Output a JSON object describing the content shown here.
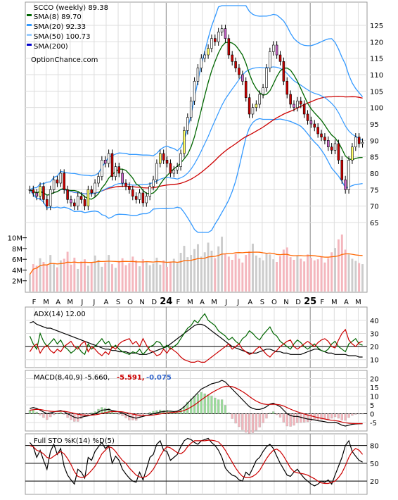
{
  "chart_data": [
    {
      "type": "candlestick",
      "panel": "price",
      "title": "SCCO (weekly) 89.38",
      "watermark": "OptionChance.com",
      "legend": [
        {
          "name": "SMA(8) 89.70",
          "color": "#006600"
        },
        {
          "name": "SMA(20) 92.33",
          "color": "#3399ff"
        },
        {
          "name": "SMA(50) 100.73",
          "color": "#99ccff"
        },
        {
          "name": "SMA(200)",
          "color": "#0000cc"
        }
      ],
      "y_ticks": [
        65,
        70,
        75,
        80,
        85,
        90,
        95,
        100,
        105,
        110,
        115,
        120,
        125
      ],
      "ylim": [
        62,
        131
      ],
      "x_ticks": [
        "F",
        "M",
        "A",
        "M",
        "J",
        "J",
        "A",
        "S",
        "O",
        "N",
        "D",
        "24",
        "F",
        "M",
        "A",
        "M",
        "J",
        "J",
        "A",
        "S",
        "O",
        "N",
        "D",
        "25",
        "F",
        "M",
        "A",
        "M"
      ],
      "close": [
        75,
        74,
        73,
        76,
        72,
        70,
        75,
        78,
        77,
        80,
        75,
        72,
        71,
        70,
        73,
        72,
        70,
        75,
        74,
        77,
        79,
        84,
        83,
        86,
        79,
        82,
        80,
        77,
        76,
        75,
        73,
        72,
        74,
        71,
        73,
        76,
        78,
        83,
        86,
        84,
        83,
        80,
        81,
        82,
        86,
        93,
        97,
        102,
        108,
        112,
        115,
        116,
        118,
        121,
        120,
        123,
        124,
        121,
        116,
        114,
        112,
        110,
        108,
        103,
        98,
        100,
        101,
        104,
        106,
        112,
        117,
        119,
        116,
        114,
        108,
        104,
        101,
        100,
        102,
        101,
        98,
        96,
        95,
        94,
        92,
        91,
        90,
        88,
        87,
        89,
        84,
        78,
        75,
        84,
        88,
        91,
        89,
        89.38
      ],
      "volume_ticks": [
        "10M",
        "8M",
        "6M",
        "4M",
        "2M"
      ],
      "volume_range": [
        0,
        11
      ],
      "volume": [
        3.2,
        5.1,
        4.8,
        6.2,
        5.5,
        4.9,
        6.8,
        5.2,
        4.5,
        5.8,
        6.1,
        7.4,
        5.0,
        6.3,
        4.2,
        5.6,
        6.0,
        4.8,
        5.3,
        6.7,
        5.9,
        4.6,
        5.4,
        6.8,
        5.1,
        4.4,
        5.7,
        6.2,
        4.9,
        5.3,
        6.5,
        5.8,
        4.7,
        6.0,
        5.5,
        4.9,
        5.2,
        6.3,
        5.0,
        5.8,
        4.6,
        5.4,
        6.1,
        5.3,
        7.2,
        8.5,
        6.4,
        6.8,
        7.9,
        8.8,
        6.5,
        7.3,
        9.1,
        7.6,
        6.2,
        8.4,
        10.2,
        7.1,
        6.5,
        5.9,
        7.0,
        6.1,
        5.4,
        6.8,
        7.5,
        8.9,
        6.7,
        6.3,
        5.8,
        7.2,
        6.9,
        6.0,
        5.5,
        6.6,
        7.8,
        8.2,
        6.4,
        5.9,
        6.7,
        6.1,
        5.6,
        6.9,
        6.3,
        5.8,
        6.0,
        6.6,
        5.4,
        6.2,
        7.3,
        8.1,
        9.7,
        10.6,
        7.8,
        6.9,
        6.1,
        5.7,
        5.3,
        5.1
      ],
      "volume_avg_color": "#ff6600"
    },
    {
      "type": "line",
      "panel": "adx",
      "title": "ADX(14) 12.00",
      "y_ticks": [
        10,
        20,
        30,
        40
      ],
      "ylim": [
        5,
        48
      ],
      "series": [
        {
          "name": "ADX",
          "color": "#000000",
          "values": [
            38,
            39,
            37,
            36,
            35,
            34,
            34,
            33,
            32,
            31,
            30,
            29,
            28,
            27,
            26,
            25,
            24,
            23,
            22,
            21,
            20,
            19,
            18,
            18,
            17,
            17,
            16,
            16,
            16,
            15,
            15,
            15,
            14,
            14,
            14,
            15,
            16,
            17,
            18,
            19,
            20,
            22,
            24,
            26,
            28,
            30,
            32,
            34,
            36,
            37,
            37,
            36,
            34,
            32,
            30,
            28,
            26,
            24,
            22,
            20,
            19,
            18,
            17,
            16,
            15,
            15,
            15,
            16,
            17,
            18,
            18,
            17,
            16,
            16,
            15,
            15,
            14,
            14,
            14,
            14,
            15,
            16,
            17,
            18,
            18,
            17,
            16,
            15,
            15,
            14,
            14,
            14,
            14,
            13,
            13,
            13,
            12,
            12
          ]
        },
        {
          "name": "+DI",
          "color": "#006600",
          "values": [
            28,
            22,
            18,
            30,
            24,
            20,
            23,
            26,
            22,
            25,
            20,
            18,
            15,
            17,
            20,
            16,
            14,
            22,
            18,
            20,
            23,
            26,
            22,
            24,
            19,
            21,
            18,
            16,
            15,
            14,
            16,
            15,
            18,
            14,
            17,
            20,
            21,
            24,
            23,
            19,
            21,
            18,
            20,
            22,
            26,
            30,
            34,
            36,
            40,
            38,
            42,
            45,
            40,
            38,
            36,
            32,
            30,
            28,
            25,
            27,
            24,
            22,
            26,
            28,
            32,
            30,
            27,
            25,
            29,
            32,
            35,
            30,
            28,
            24,
            22,
            20,
            18,
            22,
            25,
            23,
            20,
            18,
            20,
            22,
            19,
            17,
            16,
            18,
            22,
            24,
            20,
            18,
            16,
            22,
            24,
            26,
            22,
            21
          ]
        },
        {
          "name": "-DI",
          "color": "#cc0000",
          "values": [
            16,
            20,
            22,
            15,
            19,
            21,
            17,
            15,
            18,
            16,
            20,
            22,
            24,
            20,
            18,
            22,
            24,
            16,
            20,
            18,
            15,
            13,
            16,
            14,
            20,
            18,
            22,
            24,
            25,
            26,
            22,
            24,
            20,
            26,
            21,
            17,
            16,
            13,
            14,
            18,
            15,
            19,
            17,
            15,
            12,
            10,
            9,
            8,
            8,
            9,
            8,
            8,
            10,
            12,
            14,
            16,
            18,
            20,
            22,
            18,
            20,
            22,
            18,
            16,
            14,
            15,
            18,
            20,
            17,
            14,
            12,
            15,
            17,
            20,
            22,
            24,
            25,
            20,
            18,
            20,
            22,
            24,
            22,
            20,
            23,
            25,
            26,
            24,
            20,
            19,
            25,
            30,
            33,
            25,
            22,
            20,
            23,
            24
          ]
        }
      ]
    },
    {
      "type": "line",
      "panel": "macd",
      "title": "MACD(8,40,9) -5.660,",
      "signal_label": "-5.591,",
      "hist_label": "-0.075",
      "signal_color": "#cc0000",
      "hist_color": "#3366cc",
      "y_ticks": [
        -5,
        0,
        5,
        10,
        15,
        20
      ],
      "ylim": [
        -9,
        23
      ],
      "series": [
        {
          "name": "MACD",
          "color": "#000000",
          "values": [
            3,
            3.5,
            3,
            2,
            1,
            0,
            0.5,
            1,
            1.5,
            1.8,
            1.2,
            0,
            -1,
            -2,
            -2.5,
            -2,
            -1.5,
            -1.2,
            -0.5,
            0,
            1,
            2,
            2.2,
            2.5,
            1.8,
            1.5,
            1,
            0.5,
            -0.5,
            -1.5,
            -2,
            -2.5,
            -2,
            -1.5,
            -1,
            -0.5,
            0,
            0.5,
            1,
            1.2,
            1.5,
            1.5,
            1.2,
            1.5,
            2.5,
            4,
            6,
            8,
            10,
            12,
            14,
            15,
            16,
            17,
            17.5,
            18,
            19,
            18,
            16,
            14,
            12,
            10,
            8,
            6,
            4,
            3,
            2.5,
            2.5,
            3,
            4,
            5.5,
            6,
            5,
            4,
            2,
            0,
            -1,
            -1.5,
            -1.5,
            -2,
            -2.5,
            -3,
            -3.2,
            -3.5,
            -4,
            -4.2,
            -4.5,
            -5,
            -5,
            -4.8,
            -5.5,
            -6.5,
            -7,
            -6.5,
            -6,
            -5.8,
            -5.7,
            -5.66
          ]
        },
        {
          "name": "Signal",
          "color": "#cc0000",
          "values": [
            2,
            2.3,
            2.5,
            2.4,
            2.1,
            1.7,
            1.4,
            1.3,
            1.3,
            1.4,
            1.4,
            1.1,
            0.7,
            0.2,
            -0.3,
            -0.6,
            -0.8,
            -0.9,
            -0.8,
            -0.6,
            -0.3,
            0.2,
            0.6,
            1,
            1.2,
            1.2,
            1.2,
            1.1,
            0.7,
            0.3,
            -0.2,
            -0.6,
            -0.9,
            -1,
            -1,
            -0.9,
            -0.7,
            -0.4,
            -0.1,
            0.2,
            0.5,
            0.7,
            0.8,
            1,
            1.3,
            1.9,
            2.7,
            3.8,
            5,
            6.4,
            7.9,
            9.3,
            10.6,
            11.9,
            13,
            14,
            15,
            15.6,
            15.7,
            15.4,
            14.7,
            13.7,
            12.6,
            11.3,
            9.8,
            8.4,
            7.2,
            6.3,
            5.6,
            5.3,
            5.3,
            5.4,
            5.3,
            5,
            4.4,
            3.5,
            2.6,
            1.8,
            1.1,
            0.5,
            -0.1,
            -0.7,
            -1.2,
            -1.7,
            -2.2,
            -2.6,
            -3,
            -3.4,
            -3.7,
            -3.9,
            -4.2,
            -4.7,
            -5.1,
            -5.4,
            -5.5,
            -5.6,
            -5.6,
            -5.591
          ]
        }
      ]
    },
    {
      "type": "line",
      "panel": "sto",
      "title": "Full STO %K(14) %D(5)",
      "y_ticks": [
        20,
        50,
        80
      ],
      "ylim": [
        0,
        95
      ],
      "series": [
        {
          "name": "%K",
          "color": "#000000",
          "values": [
            85,
            78,
            60,
            72,
            55,
            40,
            70,
            82,
            65,
            75,
            45,
            30,
            22,
            15,
            40,
            35,
            25,
            60,
            55,
            70,
            78,
            85,
            75,
            80,
            50,
            62,
            55,
            40,
            32,
            25,
            20,
            18,
            35,
            22,
            40,
            60,
            65,
            82,
            88,
            72,
            70,
            55,
            60,
            65,
            78,
            88,
            92,
            90,
            85,
            82,
            88,
            90,
            92,
            85,
            80,
            72,
            60,
            42,
            35,
            30,
            28,
            22,
            20,
            35,
            30,
            42,
            55,
            60,
            70,
            78,
            82,
            75,
            62,
            50,
            40,
            30,
            28,
            35,
            40,
            32,
            25,
            20,
            15,
            12,
            15,
            20,
            18,
            22,
            15,
            30,
            45,
            60,
            80,
            88,
            70,
            62,
            55,
            52
          ]
        },
        {
          "name": "%D",
          "color": "#cc0000",
          "values": [
            80,
            78,
            72,
            70,
            66,
            60,
            58,
            62,
            66,
            70,
            66,
            58,
            48,
            36,
            28,
            26,
            27,
            32,
            38,
            45,
            55,
            66,
            72,
            78,
            76,
            70,
            62,
            55,
            50,
            42,
            36,
            30,
            27,
            26,
            28,
            33,
            40,
            50,
            62,
            72,
            78,
            76,
            72,
            68,
            66,
            70,
            78,
            84,
            88,
            88,
            88,
            88,
            89,
            89,
            88,
            86,
            80,
            72,
            62,
            52,
            42,
            34,
            28,
            26,
            26,
            28,
            32,
            38,
            48,
            58,
            66,
            72,
            74,
            70,
            62,
            52,
            42,
            36,
            34,
            33,
            32,
            30,
            27,
            24,
            20,
            17,
            16,
            16,
            18,
            20,
            26,
            34,
            46,
            60,
            70,
            75,
            72,
            65
          ]
        }
      ]
    }
  ],
  "months": [
    "F",
    "M",
    "A",
    "M",
    "J",
    "J",
    "A",
    "S",
    "O",
    "N",
    "D",
    "24",
    "F",
    "M",
    "A",
    "M",
    "J",
    "J",
    "A",
    "S",
    "O",
    "N",
    "D",
    "25",
    "F",
    "M",
    "A",
    "M"
  ]
}
